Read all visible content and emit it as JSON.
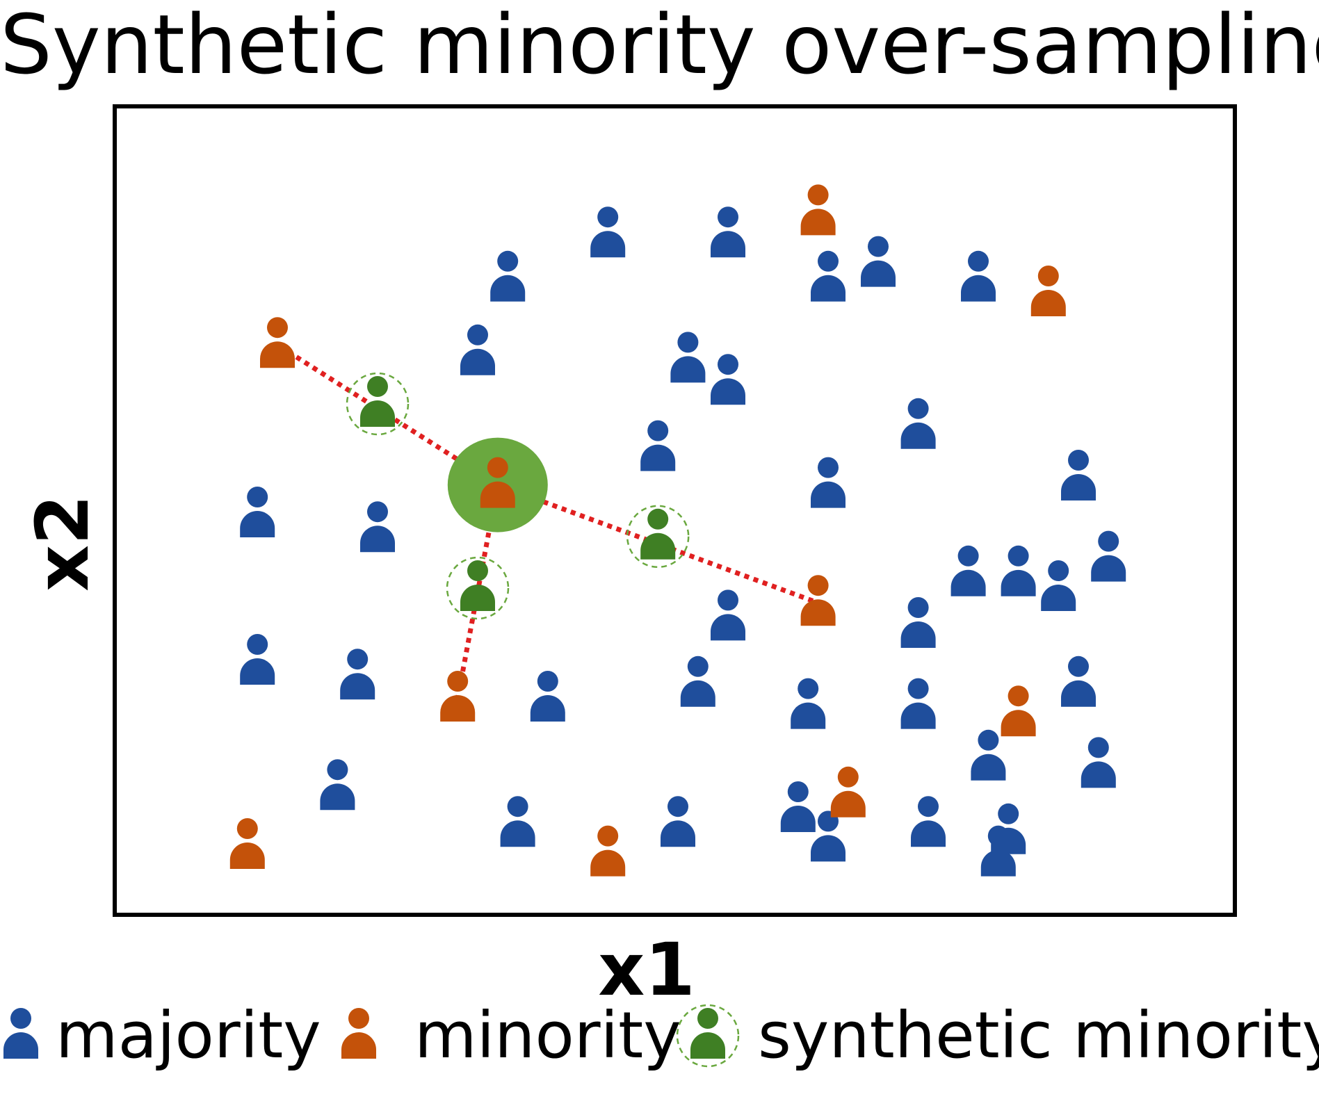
{
  "title": "Synthetic minority over-sampling",
  "x_axis_label": "x1",
  "y_axis_label": "x2",
  "legend": [
    {
      "key": "majority",
      "label": "majority"
    },
    {
      "key": "minority",
      "label": "minority"
    },
    {
      "key": "synthetic",
      "label": "synthetic minority"
    }
  ],
  "colors": {
    "majority": "#1f4e9c",
    "minority": "#c4520a",
    "synthetic": "#3f7f24",
    "selected_highlight": "#6aa83f",
    "synthetic_ring": "#6aa83f",
    "connector": "#e02020"
  },
  "chart_data": {
    "type": "scatter",
    "x_range": [
      0,
      100
    ],
    "y_range": [
      0,
      100
    ],
    "majority": [
      [
        43,
        88
      ],
      [
        55,
        88
      ],
      [
        65,
        82
      ],
      [
        70,
        84
      ],
      [
        80,
        82
      ],
      [
        33,
        82
      ],
      [
        30,
        72
      ],
      [
        51,
        71
      ],
      [
        55,
        68
      ],
      [
        48,
        59
      ],
      [
        74,
        62
      ],
      [
        90,
        55
      ],
      [
        8,
        50
      ],
      [
        20,
        48
      ],
      [
        65,
        54
      ],
      [
        79,
        42
      ],
      [
        84,
        42
      ],
      [
        88,
        40
      ],
      [
        93,
        44
      ],
      [
        55,
        36
      ],
      [
        74,
        35
      ],
      [
        8,
        30
      ],
      [
        18,
        28
      ],
      [
        37,
        25
      ],
      [
        52,
        27
      ],
      [
        63,
        24
      ],
      [
        74,
        24
      ],
      [
        90,
        27
      ],
      [
        81,
        17
      ],
      [
        92,
        16
      ],
      [
        16,
        13
      ],
      [
        34,
        8
      ],
      [
        50,
        8
      ],
      [
        62,
        10
      ],
      [
        65,
        6
      ],
      [
        75,
        8
      ],
      [
        82,
        4
      ],
      [
        83,
        7
      ]
    ],
    "minority": [
      [
        64,
        91
      ],
      [
        87,
        80
      ],
      [
        10,
        73
      ],
      [
        32,
        54
      ],
      [
        64,
        38
      ],
      [
        28,
        25
      ],
      [
        84,
        23
      ],
      [
        67,
        12
      ],
      [
        7,
        5
      ],
      [
        43,
        4
      ]
    ],
    "selected_minority": [
      32,
      54
    ],
    "neighbors": [
      [
        10,
        73
      ],
      [
        28,
        25
      ],
      [
        64,
        38
      ]
    ],
    "synthetic_minority": [
      [
        20,
        65
      ],
      [
        48,
        47
      ],
      [
        30,
        40
      ]
    ]
  }
}
